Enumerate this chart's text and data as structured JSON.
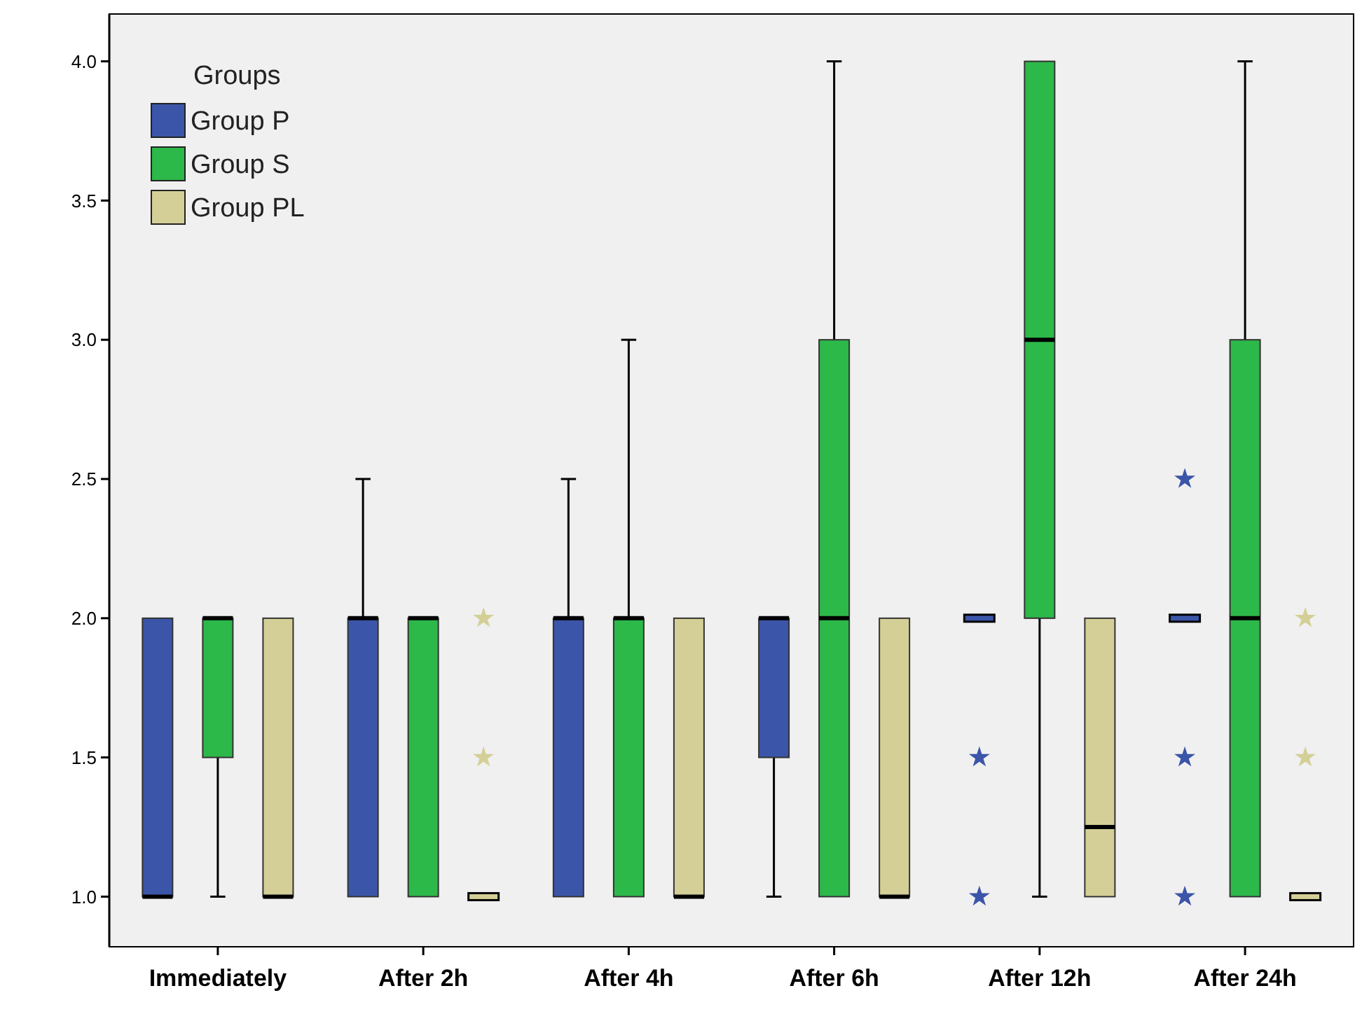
{
  "chart_data": {
    "type": "box",
    "legend_title": "Groups",
    "legend": "top left",
    "marker": "star",
    "grid": false,
    "categories": [
      "Immediately",
      "After 2h",
      "After 4h",
      "After 6h",
      "After 12h",
      "After 24h"
    ],
    "ylim": [
      0.82,
      4.17
    ],
    "yticks": [
      {
        "value": 1,
        "label": "1.0"
      },
      1.5,
      {
        "value": 2,
        "label": "2.0"
      },
      2.5,
      {
        "value": 3,
        "label": "3.0"
      },
      3.5,
      {
        "value": 4,
        "label": "4.0"
      }
    ],
    "series": [
      {
        "name": "Group P",
        "color": "#3b55a8",
        "boxes": [
          {
            "low": 1,
            "q1": 1,
            "median": 1,
            "q3": 2,
            "high": 2
          },
          {
            "low": 1,
            "q1": 1,
            "median": 2,
            "q3": 2,
            "high": 2.5
          },
          {
            "low": 1,
            "q1": 1,
            "median": 2,
            "q3": 2,
            "high": 2.5
          },
          {
            "low": 1,
            "q1": 1.5,
            "median": 2,
            "q3": 2,
            "high": 2
          },
          {
            "low": 2,
            "q1": 2,
            "median": 2,
            "q3": 2,
            "high": 2,
            "outliers": [
              1.5,
              1
            ]
          },
          {
            "low": 2,
            "q1": 2,
            "median": 2,
            "q3": 2,
            "high": 2,
            "outliers": [
              2.5,
              1.5,
              1
            ]
          }
        ]
      },
      {
        "name": "Group S",
        "color": "#2db84a",
        "boxes": [
          {
            "low": 1,
            "q1": 1.5,
            "median": 2,
            "q3": 2,
            "high": 2
          },
          {
            "low": 1,
            "q1": 1,
            "median": 2,
            "q3": 2,
            "high": 2
          },
          {
            "low": 1,
            "q1": 1,
            "median": 2,
            "q3": 2,
            "high": 3
          },
          {
            "low": 1,
            "q1": 1,
            "median": 2,
            "q3": 3,
            "high": 4
          },
          {
            "low": 1,
            "q1": 2,
            "median": 3,
            "q3": 4,
            "high": 4
          },
          {
            "low": 1,
            "q1": 1,
            "median": 2,
            "q3": 3,
            "high": 4
          }
        ]
      },
      {
        "name": "Group PL",
        "color": "#d4cf96",
        "boxes": [
          {
            "low": 1,
            "q1": 1,
            "median": 1,
            "q3": 2,
            "high": 2
          },
          {
            "low": 1,
            "q1": 1,
            "median": 1,
            "q3": 1,
            "high": 1,
            "outliers": [
              2,
              1.5
            ]
          },
          {
            "low": 1,
            "q1": 1,
            "median": 1,
            "q3": 2,
            "high": 2
          },
          {
            "low": 1,
            "q1": 1,
            "median": 1,
            "q3": 2,
            "high": 2
          },
          {
            "low": 1,
            "q1": 1,
            "median": 1.25,
            "q3": 2,
            "high": 2
          },
          {
            "low": 1,
            "q1": 1,
            "median": 1,
            "q3": 1,
            "high": 1,
            "outliers": [
              2,
              1.5
            ]
          }
        ]
      }
    ]
  }
}
